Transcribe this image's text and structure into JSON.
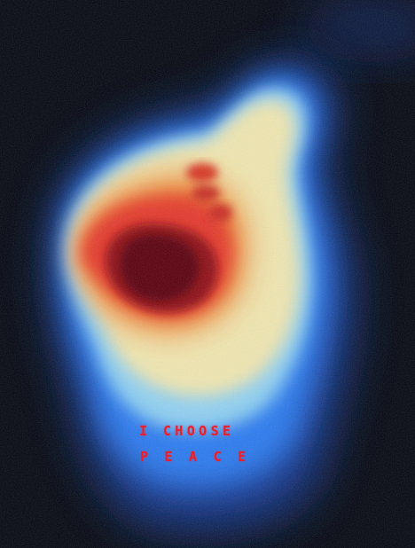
{
  "caption": {
    "line_1": "I CHOOSE",
    "line_2": "PEACE"
  },
  "colors": {
    "background": "#03060f",
    "outer_glow": "#1f66e6",
    "mid_band": "#8fd0f2",
    "warm_band": "#f0e6b0",
    "hot_band": "#f0812e",
    "core": "#b0101a",
    "caption_text": "#e8202e"
  }
}
